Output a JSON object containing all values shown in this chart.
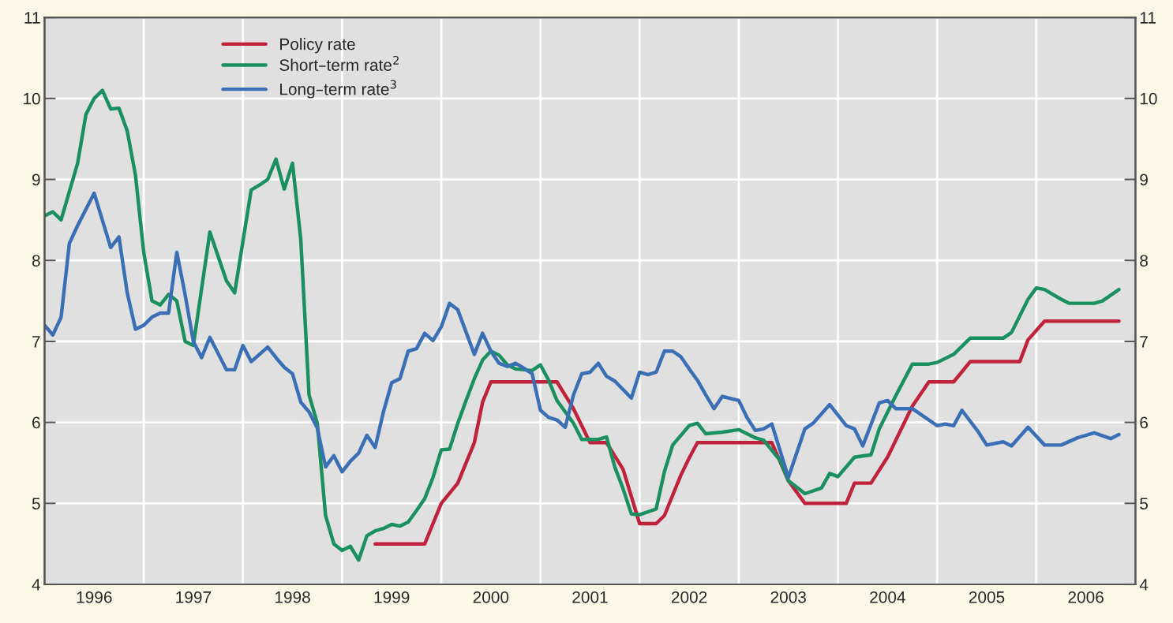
{
  "chart_data": {
    "type": "line",
    "xlim": [
      "1996-01",
      "2007-01"
    ],
    "xticks": [
      {
        "value": "1997-01",
        "label": null
      },
      {
        "value": "1998-01",
        "label": null
      },
      {
        "value": "1999-01",
        "label": null
      },
      {
        "value": "2000-01",
        "label": null
      },
      {
        "value": "2001-01",
        "label": null
      },
      {
        "value": "2002-01",
        "label": null
      },
      {
        "value": "2003-01",
        "label": null
      },
      {
        "value": "2004-01",
        "label": null
      },
      {
        "value": "2005-01",
        "label": null
      },
      {
        "value": "2006-01",
        "label": null
      },
      {
        "value": "1996-07",
        "label": "1996"
      },
      {
        "value": "1997-07",
        "label": "1997"
      },
      {
        "value": "1998-07",
        "label": "1998"
      },
      {
        "value": "1999-07",
        "label": "1999"
      },
      {
        "value": "2000-07",
        "label": "2000"
      },
      {
        "value": "2001-07",
        "label": "2001"
      },
      {
        "value": "2002-07",
        "label": "2002"
      },
      {
        "value": "2003-07",
        "label": "2003"
      },
      {
        "value": "2004-07",
        "label": "2004"
      },
      {
        "value": "2005-07",
        "label": "2005"
      },
      {
        "value": "2006-07",
        "label": "2006"
      }
    ],
    "ylim": [
      4,
      11
    ],
    "yticks": [
      4,
      5,
      6,
      7,
      8,
      9,
      10,
      11
    ],
    "y2lim": [
      4,
      11
    ],
    "y2ticks": [
      4,
      5,
      6,
      7,
      8,
      9,
      10,
      11
    ],
    "grid": true,
    "legend": "top left",
    "series": [
      {
        "name": "Policy rate",
        "color": "#c0223b",
        "x": [
          "1999-05",
          "1999-11",
          "2000-01",
          "2000-03",
          "2000-05",
          "2000-06",
          "2000-07",
          "2001-03",
          "2001-05",
          "2001-07",
          "2001-09",
          "2001-11",
          "2002-01",
          "2002-03",
          "2002-04",
          "2002-06",
          "2002-07",
          "2002-08",
          "2003-05",
          "2003-07",
          "2003-09",
          "2004-02",
          "2004-03",
          "2004-05",
          "2004-07",
          "2004-08",
          "2004-10",
          "2004-12",
          "2005-03",
          "2005-05",
          "2005-11",
          "2005-12",
          "2006-02",
          "2006-11"
        ],
        "values": [
          4.5,
          4.5,
          5.0,
          5.25,
          5.75,
          6.25,
          6.5,
          6.5,
          6.17,
          5.75,
          5.75,
          5.42,
          4.75,
          4.75,
          4.85,
          5.35,
          5.56,
          5.75,
          5.75,
          5.28,
          5.0,
          5.0,
          5.25,
          5.25,
          5.57,
          5.78,
          6.2,
          6.5,
          6.5,
          6.75,
          6.75,
          7.02,
          7.25,
          7.25
        ]
      },
      {
        "name": "Short–term rate$^{2}$",
        "color": "#1a9060",
        "x": [
          "1996-01",
          "1996-02",
          "1996-03",
          "1996-05",
          "1996-06",
          "1996-07",
          "1996-08",
          "1996-09",
          "1996-10",
          "1996-11",
          "1996-12",
          "1997-01",
          "1997-02",
          "1997-03",
          "1997-04",
          "1997-05",
          "1997-06",
          "1997-07",
          "1997-09",
          "1997-10",
          "1997-11",
          "1997-12",
          "1998-02",
          "1998-03",
          "1998-04",
          "1998-05",
          "1998-06",
          "1998-07",
          "1998-08",
          "1998-09",
          "1998-10",
          "1998-11",
          "1998-12",
          "1999-01",
          "1999-02",
          "1999-03",
          "1999-04",
          "1999-05",
          "1999-06",
          "1999-07",
          "1999-08",
          "1999-09",
          "1999-10",
          "1999-11",
          "1999-12",
          "2000-01",
          "2000-02",
          "2000-03",
          "2000-04",
          "2000-05",
          "2000-06",
          "2000-07",
          "2000-08",
          "2000-09",
          "2000-10",
          "2000-12",
          "2001-01",
          "2001-02",
          "2001-03",
          "2001-05",
          "2001-06",
          "2001-08",
          "2001-09",
          "2001-10",
          "2001-11",
          "2001-12",
          "2002-01",
          "2002-03",
          "2002-04",
          "2002-05",
          "2002-07",
          "2002-08",
          "2002-09",
          "2002-11",
          "2003-01",
          "2003-03",
          "2003-04",
          "2003-06",
          "2003-07",
          "2003-09",
          "2003-11",
          "2003-12",
          "2004-01",
          "2004-03",
          "2004-05",
          "2004-06",
          "2004-08",
          "2004-10",
          "2004-12",
          "2005-01",
          "2005-03",
          "2005-05",
          "2005-07",
          "2005-09",
          "2005-10",
          "2005-12",
          "2006-01",
          "2006-02",
          "2006-04",
          "2006-05",
          "2006-08",
          "2006-09",
          "2006-11"
        ],
        "values": [
          8.55,
          8.6,
          8.5,
          9.2,
          9.8,
          10.0,
          10.1,
          9.87,
          9.88,
          9.6,
          9.05,
          8.1,
          7.5,
          7.45,
          7.58,
          7.5,
          7.0,
          6.95,
          8.35,
          8.05,
          7.75,
          7.6,
          8.87,
          8.93,
          9.0,
          9.25,
          8.88,
          9.2,
          8.26,
          6.34,
          5.99,
          4.85,
          4.5,
          4.42,
          4.47,
          4.3,
          4.6,
          4.66,
          4.69,
          4.74,
          4.72,
          4.77,
          4.91,
          5.06,
          5.32,
          5.66,
          5.67,
          5.99,
          6.27,
          6.54,
          6.77,
          6.88,
          6.83,
          6.71,
          6.66,
          6.64,
          6.71,
          6.52,
          6.27,
          5.99,
          5.79,
          5.79,
          5.82,
          5.45,
          5.18,
          4.87,
          4.86,
          4.93,
          5.39,
          5.72,
          5.96,
          5.99,
          5.86,
          5.88,
          5.91,
          5.81,
          5.78,
          5.53,
          5.28,
          5.12,
          5.19,
          5.37,
          5.33,
          5.57,
          5.6,
          5.92,
          6.33,
          6.72,
          6.72,
          6.74,
          6.84,
          7.04,
          7.04,
          7.04,
          7.11,
          7.52,
          7.66,
          7.64,
          7.52,
          7.47,
          7.47,
          7.5,
          7.64
        ]
      },
      {
        "name": "Long–term rate$^{3}$",
        "color": "#3a6fb5",
        "x": [
          "1996-01",
          "1996-02",
          "1996-03",
          "1996-04",
          "1996-05",
          "1996-07",
          "1996-09",
          "1996-10",
          "1996-11",
          "1996-12",
          "1997-01",
          "1997-02",
          "1997-03",
          "1997-04",
          "1997-05",
          "1997-06",
          "1997-07",
          "1997-08",
          "1997-09",
          "1997-10",
          "1997-11",
          "1997-12",
          "1998-01",
          "1998-02",
          "1998-04",
          "1998-05",
          "1998-06",
          "1998-07",
          "1998-08",
          "1998-09",
          "1998-10",
          "1998-11",
          "1998-12",
          "1999-01",
          "1999-02",
          "1999-03",
          "1999-04",
          "1999-05",
          "1999-06",
          "1999-07",
          "1999-08",
          "1999-09",
          "1999-10",
          "1999-11",
          "1999-12",
          "2000-01",
          "2000-02",
          "2000-03",
          "2000-05",
          "2000-06",
          "2000-07",
          "2000-08",
          "2000-09",
          "2000-10",
          "2000-11",
          "2000-12",
          "2001-01",
          "2001-02",
          "2001-03",
          "2001-04",
          "2001-05",
          "2001-06",
          "2001-07",
          "2001-08",
          "2001-09",
          "2001-10",
          "2001-12",
          "2002-01",
          "2002-02",
          "2002-03",
          "2002-04",
          "2002-05",
          "2002-06",
          "2002-07",
          "2002-08",
          "2002-09",
          "2002-10",
          "2002-11",
          "2003-01",
          "2003-02",
          "2003-03",
          "2003-04",
          "2003-05",
          "2003-07",
          "2003-09",
          "2003-10",
          "2003-12",
          "2004-02",
          "2004-03",
          "2004-04",
          "2004-06",
          "2004-07",
          "2004-08",
          "2004-10",
          "2004-11",
          "2005-01",
          "2005-02",
          "2005-03",
          "2005-04",
          "2005-06",
          "2005-07",
          "2005-09",
          "2005-10",
          "2005-12",
          "2006-02",
          "2006-04",
          "2006-06",
          "2006-08",
          "2006-10",
          "2006-11"
        ],
        "values": [
          7.2,
          7.08,
          7.3,
          8.21,
          8.43,
          8.83,
          8.16,
          8.29,
          7.6,
          7.15,
          7.2,
          7.3,
          7.35,
          7.35,
          8.1,
          7.58,
          7.0,
          6.8,
          7.05,
          6.85,
          6.65,
          6.65,
          6.95,
          6.75,
          6.93,
          6.8,
          6.68,
          6.6,
          6.25,
          6.13,
          5.93,
          5.45,
          5.59,
          5.39,
          5.52,
          5.62,
          5.84,
          5.69,
          6.13,
          6.49,
          6.54,
          6.88,
          6.91,
          7.1,
          7.01,
          7.18,
          7.47,
          7.39,
          6.84,
          7.1,
          6.88,
          6.73,
          6.69,
          6.73,
          6.67,
          6.6,
          6.15,
          6.06,
          6.03,
          5.94,
          6.34,
          6.6,
          6.62,
          6.73,
          6.57,
          6.51,
          6.3,
          6.62,
          6.59,
          6.62,
          6.88,
          6.88,
          6.81,
          6.66,
          6.52,
          6.34,
          6.17,
          6.32,
          6.27,
          6.06,
          5.9,
          5.92,
          5.98,
          5.32,
          5.92,
          5.99,
          6.22,
          5.96,
          5.92,
          5.71,
          6.24,
          6.27,
          6.17,
          6.17,
          6.1,
          5.96,
          5.98,
          5.96,
          6.15,
          5.88,
          5.72,
          5.76,
          5.71,
          5.94,
          5.72,
          5.72,
          5.81,
          5.87,
          5.8,
          5.85
        ]
      }
    ]
  }
}
